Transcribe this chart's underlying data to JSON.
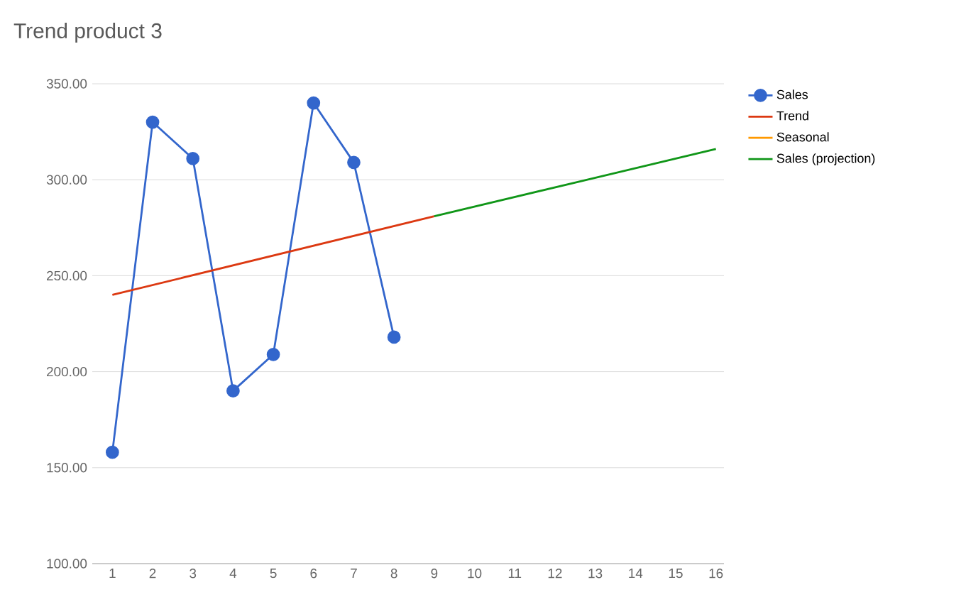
{
  "chart_data": {
    "type": "line",
    "title": "Trend product 3",
    "xlim": [
      0.5,
      16.2
    ],
    "xticks": [
      1,
      2,
      3,
      4,
      5,
      6,
      7,
      8,
      9,
      10,
      11,
      12,
      13,
      14,
      15,
      16
    ],
    "ylim": [
      100,
      350
    ],
    "yticks": [
      {
        "value": 100,
        "label": "100.00"
      },
      {
        "value": 150,
        "label": "150.00"
      },
      {
        "value": 200,
        "label": "200.00"
      },
      {
        "value": 250,
        "label": "250.00"
      },
      {
        "value": 300,
        "label": "300.00"
      },
      {
        "value": 350,
        "label": "350.00"
      }
    ],
    "grid": "y",
    "legend": "right",
    "series": [
      {
        "name": "Sales",
        "color": "#3366cc",
        "marker": "circle",
        "x": [
          1,
          2,
          3,
          4,
          5,
          6,
          7,
          8
        ],
        "values": [
          158,
          330,
          311,
          190,
          209,
          340,
          309,
          218
        ]
      },
      {
        "name": "Trend",
        "color": "#dc3912",
        "marker": "none",
        "x": [
          1,
          9
        ],
        "values": [
          240,
          281
        ]
      },
      {
        "name": "Seasonal",
        "color": "#ff9900",
        "marker": "none"
      },
      {
        "name": "Sales (projection)",
        "color": "#109618",
        "marker": "none",
        "x": [
          9,
          16
        ],
        "values": [
          281,
          316
        ]
      }
    ]
  }
}
